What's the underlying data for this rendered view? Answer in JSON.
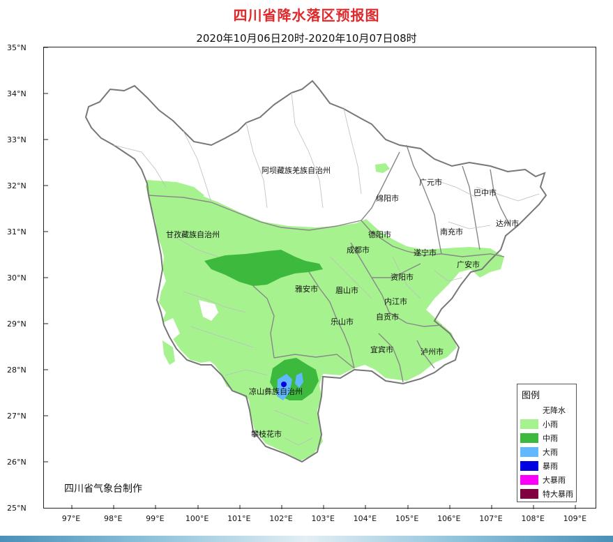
{
  "title": "四川省降水落区预报图",
  "subtitle": "2020年10月06日20时-2020年10月07日08时",
  "credit": "四川省气象台制作",
  "latitude_labels": [
    "35°N",
    "34°N",
    "33°N",
    "32°N",
    "31°N",
    "30°N",
    "29°N",
    "28°N",
    "27°N",
    "26°N",
    "25°N"
  ],
  "longitude_labels": [
    "97°E",
    "98°E",
    "99°E",
    "100°E",
    "101°E",
    "102°E",
    "103°E",
    "104°E",
    "105°E",
    "106°E",
    "107°E",
    "108°E",
    "109°E"
  ],
  "regions": [
    "阿坝藏族羌族自治州",
    "广元市",
    "巴中市",
    "绵阳市",
    "甘孜藏族自治州",
    "德阳市",
    "南充市",
    "达州市",
    "成都市",
    "遂宁市",
    "广安市",
    "雅安市",
    "眉山市",
    "资阳市",
    "内江市",
    "乐山市",
    "自贡市",
    "宜宾市",
    "泸州市",
    "凉山彝族自治州",
    "攀枝花市"
  ],
  "legend": {
    "title": "图例",
    "items": [
      {
        "label": "无降水",
        "color": "#ffffff"
      },
      {
        "label": "小雨",
        "color": "#a6f28f"
      },
      {
        "label": "中雨",
        "color": "#3dba3d"
      },
      {
        "label": "大雨",
        "color": "#61b8ff"
      },
      {
        "label": "暴雨",
        "color": "#0000e1"
      },
      {
        "label": "大暴雨",
        "color": "#fa00fa"
      },
      {
        "label": "特大暴雨",
        "color": "#800040"
      }
    ]
  }
}
